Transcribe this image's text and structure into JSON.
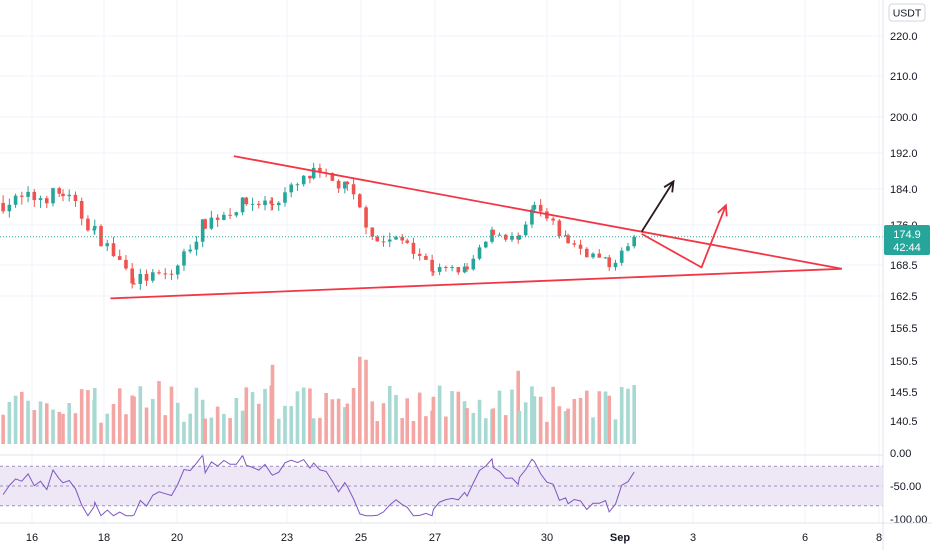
{
  "header": {
    "currency": "USDT"
  },
  "price_badge": {
    "price": "174.9",
    "countdown": "42:44",
    "color": "#26a69a"
  },
  "colors": {
    "up": "#26a69a",
    "down": "#ef5350",
    "up_volume": "#a7d8d2",
    "down_volume": "#f4a6a4",
    "trendline": "#f23645",
    "bull_arrow": "#2a1b1b",
    "rsi_line": "#7e57c2",
    "rsi_band": "#ede7f6",
    "grid": "#f0f3fa"
  },
  "chart_data": {
    "type": "candlestick",
    "price_axis": {
      "ylim": [
        158,
        224
      ],
      "ticks": [
        "220.0",
        "210.0",
        "200.0",
        "192.0",
        "184.0",
        "176.0",
        "168.5",
        "162.5"
      ]
    },
    "volume_axis": {
      "ticks": [
        "156.5",
        "150.5",
        "145.5",
        "140.5"
      ]
    },
    "rsi_axis": {
      "ylim": [
        -100,
        0
      ],
      "ticks": [
        "0.00",
        "-50.00",
        "-100.00"
      ],
      "band": [
        -80,
        -20
      ]
    },
    "x_axis": {
      "ticks": [
        "16",
        "18",
        "20",
        "23",
        "25",
        "27",
        "30",
        "Sep",
        "3",
        "6",
        "8"
      ],
      "range_days": [
        15,
        38.6
      ]
    },
    "trendlines": [
      {
        "name": "resistance",
        "points": [
          [
            21.25,
            191.8
          ],
          [
            37.5,
            168.2
          ]
        ]
      },
      {
        "name": "support",
        "points": [
          [
            17.95,
            162.0
          ],
          [
            37.5,
            168.2
          ]
        ]
      },
      {
        "name": "breakdown-path",
        "points": [
          [
            32.15,
            175.5
          ],
          [
            33.75,
            168.5
          ],
          [
            34.4,
            181.5
          ]
        ]
      },
      {
        "name": "breakout-path",
        "points": [
          [
            32.15,
            176.0
          ],
          [
            33.0,
            186.5
          ]
        ]
      }
    ],
    "segments": [
      {
        "x": [
          15.0,
          16.6
        ],
        "y": [
          182,
          184
        ],
        "swing": 3.5
      },
      {
        "x": [
          16.6,
          17.45
        ],
        "y": [
          184,
          176
        ],
        "swing": 3.5
      },
      {
        "x": [
          17.45,
          18.5
        ],
        "y": [
          176,
          166
        ],
        "swing": 3.0
      },
      {
        "x": [
          18.5,
          19.5
        ],
        "y": [
          166,
          167
        ],
        "swing": 2.5
      },
      {
        "x": [
          19.5,
          20.4
        ],
        "y": [
          167,
          178
        ],
        "swing": 3.0
      },
      {
        "x": [
          20.4,
          21.5
        ],
        "y": [
          178,
          182
        ],
        "swing": 3.0
      },
      {
        "x": [
          21.5,
          22.2
        ],
        "y": [
          182,
          182
        ],
        "swing": 3.0
      },
      {
        "x": [
          22.2,
          23.3
        ],
        "y": [
          182,
          188
        ],
        "swing": 3.0
      },
      {
        "x": [
          23.3,
          24.2
        ],
        "y": [
          188,
          185
        ],
        "swing": 3.0
      },
      {
        "x": [
          24.2,
          25.0
        ],
        "y": [
          185,
          174
        ],
        "swing": 3.0
      },
      {
        "x": [
          25.0,
          25.8
        ],
        "y": [
          174,
          174
        ],
        "swing": 3.0
      },
      {
        "x": [
          25.8,
          26.5
        ],
        "y": [
          174,
          168
        ],
        "swing": 2.5
      },
      {
        "x": [
          26.5,
          27.4
        ],
        "y": [
          168,
          168
        ],
        "swing": 1.8
      },
      {
        "x": [
          27.4,
          28.1
        ],
        "y": [
          168,
          176
        ],
        "swing": 2.0
      },
      {
        "x": [
          28.1,
          28.8
        ],
        "y": [
          176,
          174
        ],
        "swing": 2.0
      },
      {
        "x": [
          28.8,
          29.2
        ],
        "y": [
          174,
          181
        ],
        "swing": 2.5
      },
      {
        "x": [
          29.2,
          30.1
        ],
        "y": [
          181,
          174
        ],
        "swing": 2.5
      },
      {
        "x": [
          30.1,
          31.2
        ],
        "y": [
          174,
          169
        ],
        "swing": 2.5
      },
      {
        "x": [
          31.2,
          32.0
        ],
        "y": [
          169,
          174.9
        ],
        "swing": 2.0
      }
    ]
  }
}
